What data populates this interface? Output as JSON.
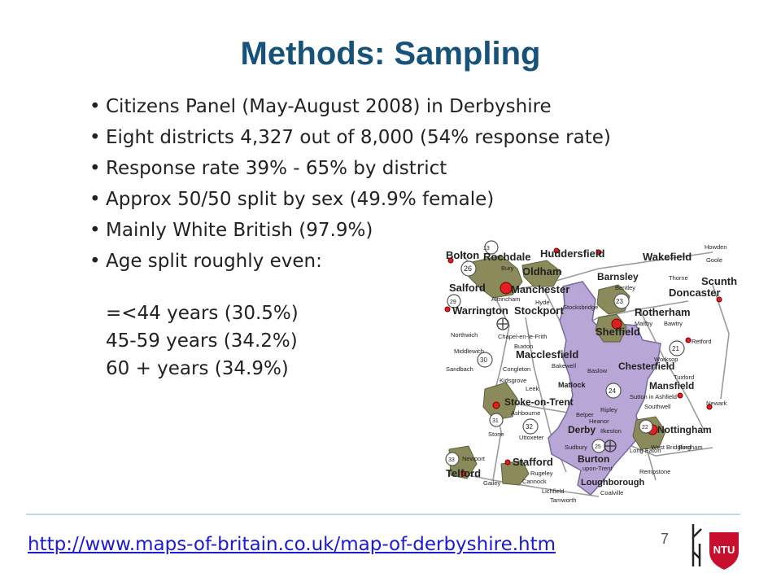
{
  "slide": {
    "title": "Methods: Sampling",
    "bullets": [
      "Citizens Panel (May-August 2008) in Derbyshire",
      "Eight districts 4,327 out of 8,000 (54% response rate)",
      "Response rate 39% - 65% by district",
      "Approx 50/50 split by sex (49.9% female)",
      "Mainly White British (97.9%)",
      "Age split roughly even:"
    ],
    "age_groups": [
      "=<44 years (30.5%)",
      "45-59 years (34.2%)",
      "60 + years (34.9%)"
    ],
    "source_link": "http://www.maps-of-britain.co.uk/map-of-derbyshire.htm",
    "page_number": "7",
    "logo_text": "NTU"
  },
  "map": {
    "labels": {
      "bolton": "Bolton",
      "rochdale": "Rochdale",
      "huddersfield": "Huddersfield",
      "wakefield": "Wakefield",
      "howden": "Howden",
      "goole": "Goole",
      "oldham": "Oldham",
      "bury": "Bury",
      "salford": "Salford",
      "manchester": "Manchester",
      "barnsley": "Barnsley",
      "thorne": "Thorne",
      "scunth": "Scunth",
      "doncaster": "Doncaster",
      "bentley": "Bentley",
      "warrington": "Warrington",
      "altrincham": "Altrincham",
      "stockport": "Stockport",
      "hyde": "Hyde",
      "stocksbridge": "Stocksbridge",
      "rotherham": "Rotherham",
      "maltby": "Maltby",
      "bawtry": "Bawtry",
      "northwich": "Northwich",
      "chapel": "Chapel-en-le-Frith",
      "sheffield": "Sheffield",
      "retford": "Retford",
      "middlewich": "Middlewich",
      "buxton": "Buxton",
      "macclesfield": "Macclesfield",
      "worksop": "Worksop",
      "sandbach": "Sandbach",
      "bakewell": "Bakewell",
      "chesterfield": "Chesterfield",
      "congleton": "Congleton",
      "baslow": "Baslow",
      "tuxford": "Tuxford",
      "kidsgrove": "Kidsgrove",
      "leek": "Leek",
      "matlock": "Matlock",
      "mansfield": "Mansfield",
      "sutton": "Sutton in Ashfield",
      "stoke": "Stoke-on-Trent",
      "ashbourne": "Ashbourne",
      "ripley": "Ripley",
      "southwell": "Southwell",
      "newark": "Newark",
      "belper": "Belper",
      "heanor": "Heanor",
      "nottingham": "Nottingham",
      "stone": "Stone",
      "derby": "Derby",
      "ilkeston": "Ilkeston",
      "uttoxeter": "Uttoxeter",
      "bingham": "Bingham",
      "west_bridgford": "West Bridgford",
      "sudbury": "Sudbury",
      "long_eaton": "Long Eaton",
      "newport": "Newport",
      "stafford": "Stafford",
      "burton": "Burton",
      "upon_trent": "upon-Trent",
      "telford": "Telford",
      "rugeley": "Rugeley",
      "rempstone": "Rempstone",
      "cannock": "Cannock",
      "loughborough": "Loughborough",
      "gailey": "Gailey",
      "lichfield": "Lichfield",
      "coalville": "Coalville",
      "tamworth": "Tamworth",
      "r13": "13",
      "r26": "26",
      "r29": "29",
      "r23": "23",
      "r30": "30",
      "r21": "21",
      "r24": "24",
      "r31": "31",
      "r32": "32",
      "r22": "22",
      "r25": "25",
      "r33": "33"
    }
  }
}
